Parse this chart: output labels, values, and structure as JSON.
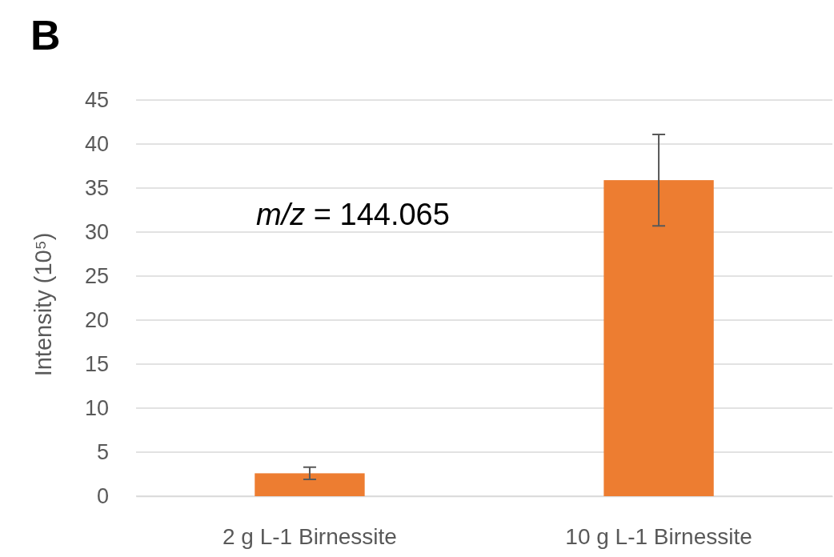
{
  "chart_data": {
    "type": "bar",
    "title": "B",
    "ylabel": "Intensity (10⁵)",
    "categories": [
      "2 g L-1 Birnessite",
      "10 g L-1 Birnessite"
    ],
    "values": [
      2.6,
      35.9
    ],
    "errors": [
      0.7,
      5.2
    ],
    "color": "#ed7d31",
    "ylim": [
      0,
      45
    ],
    "yticks": [
      0,
      5,
      10,
      15,
      20,
      25,
      30,
      35,
      40,
      45
    ],
    "grid": "y",
    "annotations": [
      "m/z = 144.065"
    ]
  }
}
